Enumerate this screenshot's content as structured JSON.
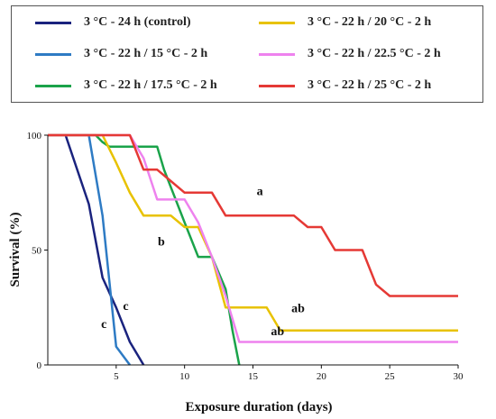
{
  "chart_data": {
    "type": "line",
    "xlabel": "Exposure duration (days)",
    "ylabel": "Survival (%)",
    "xlim": [
      0,
      30
    ],
    "ylim": [
      0,
      100
    ],
    "xticks": [
      "5",
      "10",
      "15",
      "20",
      "25",
      "30"
    ],
    "yticks": [
      "0",
      "50",
      "100"
    ],
    "grid": false,
    "legend": "top",
    "series": [
      {
        "name": "3 °C - 24 h (control)",
        "color": "#1a237e",
        "x": [
          0,
          1.3,
          3,
          4,
          5,
          6,
          7
        ],
        "y": [
          100,
          100,
          70,
          38,
          25,
          10,
          0
        ]
      },
      {
        "name": "3 °C - 22 h / 15 °C - 2 h",
        "color": "#2e7bc4",
        "x": [
          0,
          3,
          4,
          5,
          6
        ],
        "y": [
          100,
          100,
          65,
          8,
          0
        ]
      },
      {
        "name": "3 °C - 22 h / 17.5 °C - 2 h",
        "color": "#1aa34a",
        "x": [
          0,
          3.5,
          4,
          4.5,
          8,
          8.5,
          10,
          11,
          12,
          13,
          13.5,
          14
        ],
        "y": [
          100,
          100,
          97,
          95,
          95,
          85,
          62,
          47,
          47,
          33,
          15,
          0
        ]
      },
      {
        "name": "3 °C - 22 h / 20 °C - 2 h",
        "color": "#e8c200",
        "x": [
          0,
          4,
          5,
          6,
          7,
          9,
          10,
          11,
          12,
          13,
          16,
          17,
          30
        ],
        "y": [
          100,
          100,
          88,
          75,
          65,
          65,
          60,
          60,
          47,
          25,
          25,
          15,
          15
        ]
      },
      {
        "name": "3 °C - 22 h / 22.5 °C - 2 h",
        "color": "#ee82ee",
        "x": [
          0,
          6,
          7,
          8,
          10,
          11,
          12,
          13,
          13.5,
          14,
          30
        ],
        "y": [
          100,
          100,
          90,
          72,
          72,
          62,
          47,
          30,
          20,
          10,
          10
        ]
      },
      {
        "name": "3 °C - 22 h / 25 °C - 2 h",
        "color": "#e53935",
        "x": [
          0,
          6,
          7,
          8,
          9,
          10,
          12,
          13,
          18,
          19,
          20,
          21,
          23,
          24,
          25,
          30
        ],
        "y": [
          100,
          100,
          85,
          85,
          80,
          75,
          75,
          65,
          65,
          60,
          60,
          50,
          50,
          35,
          30,
          30
        ]
      }
    ],
    "annotations": [
      {
        "text": "a",
        "x": 15.5,
        "y": 74
      },
      {
        "text": "b",
        "x": 8.3,
        "y": 52
      },
      {
        "text": "ab",
        "x": 18.3,
        "y": 23
      },
      {
        "text": "ab",
        "x": 16.8,
        "y": 13
      },
      {
        "text": "c",
        "x": 5.7,
        "y": 24
      },
      {
        "text": "c",
        "x": 4.1,
        "y": 16
      }
    ]
  }
}
